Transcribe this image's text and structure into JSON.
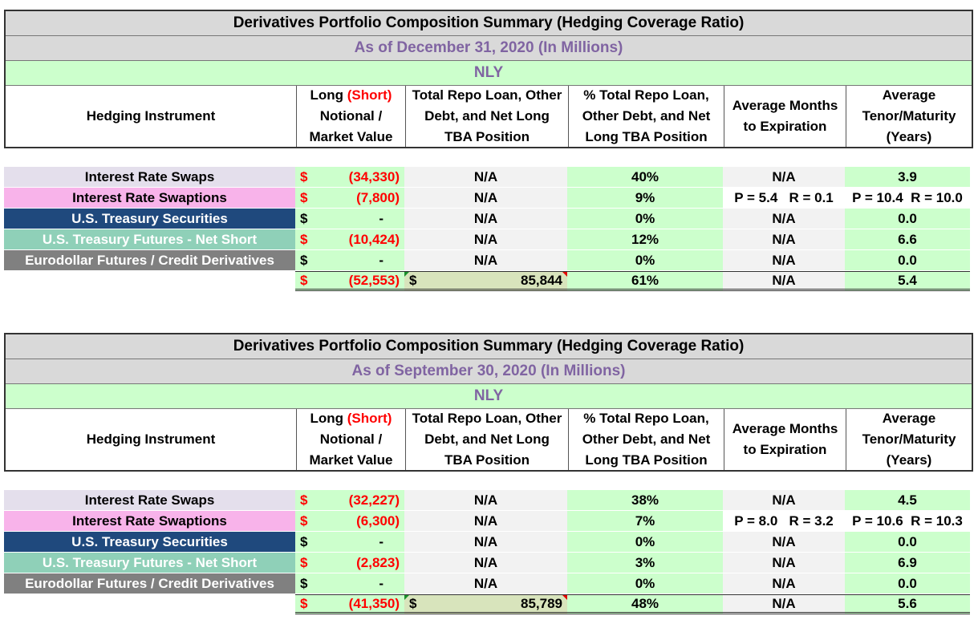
{
  "tables": [
    {
      "title": "Derivatives Portfolio Composition Summary (Hedging Coverage Ratio)",
      "subtitle": "As of December 31, 2020 (In Millions)",
      "entity": "NLY",
      "headers": {
        "instrument": "Hedging Instrument",
        "notional_1": "Long ",
        "notional_short": "(Short)",
        "notional_2": "Notional /",
        "notional_3": "Market Value",
        "repo_1": "Total Repo Loan, Other",
        "repo_2": "Debt, and Net Long",
        "repo_3": "TBA Position",
        "pct_1": "% Total Repo Loan,",
        "pct_2": "Other Debt, and Net",
        "pct_3": "Long TBA Position",
        "months_1": "Average Months",
        "months_2": "to Expiration",
        "tenor_1": "Average",
        "tenor_2": "Tenor/Maturity",
        "tenor_3": "(Years)"
      },
      "rows": [
        {
          "label": "Interest Rate Swaps",
          "dollar": "$",
          "amount": "(34,330)",
          "repo": "N/A",
          "pct": "40%",
          "months": "N/A",
          "tenor": "3.9"
        },
        {
          "label": "Interest Rate Swaptions",
          "dollar": "$",
          "amount": "(7,800)",
          "repo": "N/A",
          "pct": "9%",
          "months": "P = 5.4   R = 0.1",
          "tenor": "P = 10.4  R = 10.0"
        },
        {
          "label": "U.S. Treasury Securities",
          "dollar": "$",
          "amount": "-",
          "repo": "N/A",
          "pct": "0%",
          "months": "N/A",
          "tenor": "0.0"
        },
        {
          "label": "U.S. Treasury Futures - Net Short",
          "dollar": "$",
          "amount": "(10,424)",
          "repo": "N/A",
          "pct": "12%",
          "months": "N/A",
          "tenor": "6.6"
        },
        {
          "label": "Eurodollar Futures / Credit Derivatives",
          "dollar": "$",
          "amount": "-",
          "repo": "N/A",
          "pct": "0%",
          "months": "N/A",
          "tenor": "0.0"
        }
      ],
      "total": {
        "dollar": "$",
        "amount": "(52,553)",
        "repo_dollar": "$",
        "repo": "85,844",
        "pct": "61%",
        "months": "N/A",
        "tenor": "5.4"
      }
    },
    {
      "title": "Derivatives Portfolio Composition Summary (Hedging Coverage Ratio)",
      "subtitle": "As of September 30, 2020 (In Millions)",
      "entity": "NLY",
      "headers": {
        "instrument": "Hedging Instrument",
        "notional_1": "Long ",
        "notional_short": "(Short)",
        "notional_2": "Notional /",
        "notional_3": "Market Value",
        "repo_1": "Total Repo Loan, Other",
        "repo_2": "Debt, and Net Long",
        "repo_3": "TBA Position",
        "pct_1": "% Total Repo Loan,",
        "pct_2": "Other Debt, and Net",
        "pct_3": "Long TBA Position",
        "months_1": "Average Months",
        "months_2": "to Expiration",
        "tenor_1": "Average",
        "tenor_2": "Tenor/Maturity",
        "tenor_3": "(Years)"
      },
      "rows": [
        {
          "label": "Interest Rate Swaps",
          "dollar": "$",
          "amount": "(32,227)",
          "repo": "N/A",
          "pct": "38%",
          "months": "N/A",
          "tenor": "4.5"
        },
        {
          "label": "Interest Rate Swaptions",
          "dollar": "$",
          "amount": "(6,300)",
          "repo": "N/A",
          "pct": "7%",
          "months": "P = 8.0   R = 3.2",
          "tenor": "P = 10.6  R = 10.3"
        },
        {
          "label": "U.S. Treasury Securities",
          "dollar": "$",
          "amount": "-",
          "repo": "N/A",
          "pct": "0%",
          "months": "N/A",
          "tenor": "0.0"
        },
        {
          "label": "U.S. Treasury Futures - Net Short",
          "dollar": "$",
          "amount": "(2,823)",
          "repo": "N/A",
          "pct": "3%",
          "months": "N/A",
          "tenor": "6.9"
        },
        {
          "label": "Eurodollar Futures / Credit Derivatives",
          "dollar": "$",
          "amount": "-",
          "repo": "N/A",
          "pct": "0%",
          "months": "N/A",
          "tenor": "0.0"
        }
      ],
      "total": {
        "dollar": "$",
        "amount": "(41,350)",
        "repo_dollar": "$",
        "repo": "85,789",
        "pct": "48%",
        "months": "N/A",
        "tenor": "5.6"
      }
    }
  ]
}
